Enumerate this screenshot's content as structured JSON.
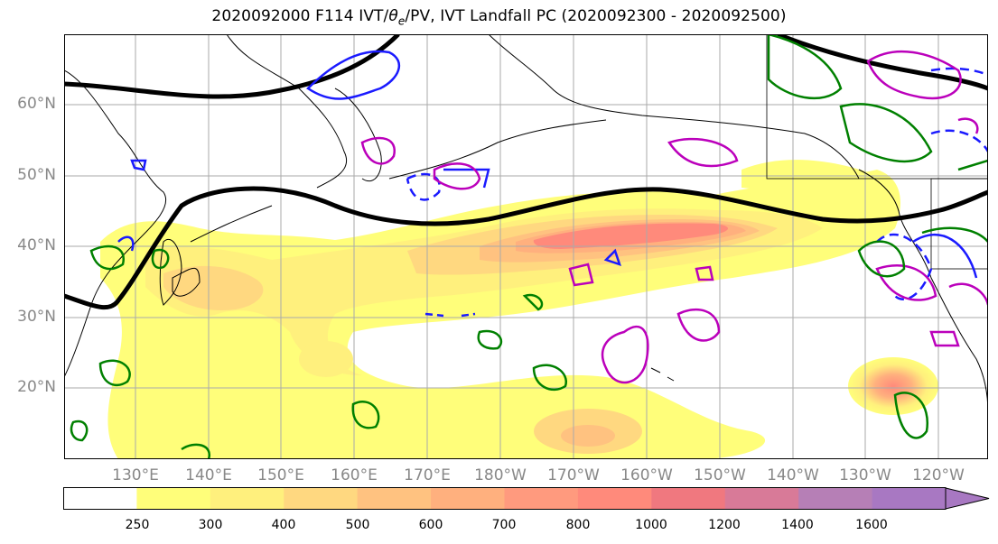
{
  "title_prefix": "2020092000 F114 IVT/",
  "title_theta": "θ",
  "title_sub": "e",
  "title_suffix": "/PV, IVT Landfall PC (2020092300 - 2020092500)",
  "lat_labels": [
    "60°N",
    "50°N",
    "40°N",
    "30°N",
    "20°N"
  ],
  "lon_labels": [
    "130°E",
    "140°E",
    "150°E",
    "160°E",
    "170°E",
    "180°W",
    "170°W",
    "160°W",
    "150°W",
    "140°W",
    "130°W",
    "120°W"
  ],
  "colorbar": {
    "ticks": [
      "250",
      "300",
      "400",
      "500",
      "600",
      "700",
      "800",
      "1000",
      "1200",
      "1400",
      "1600"
    ],
    "colors": [
      "#ffffff",
      "#fffe7a",
      "#fff07d",
      "#ffd880",
      "#ffc280",
      "#ffb07e",
      "#ff9a7e",
      "#ff8a7b",
      "#f0787f",
      "#d87a98",
      "#b67fb6",
      "#a878c2"
    ]
  },
  "colors": {
    "coast": "#000000",
    "jet": "#000000",
    "theta_e_contour": "#1a1aff",
    "pv_contour": "#bb00bb",
    "green_contour": "#008000",
    "grid": "#aaaaaa"
  }
}
